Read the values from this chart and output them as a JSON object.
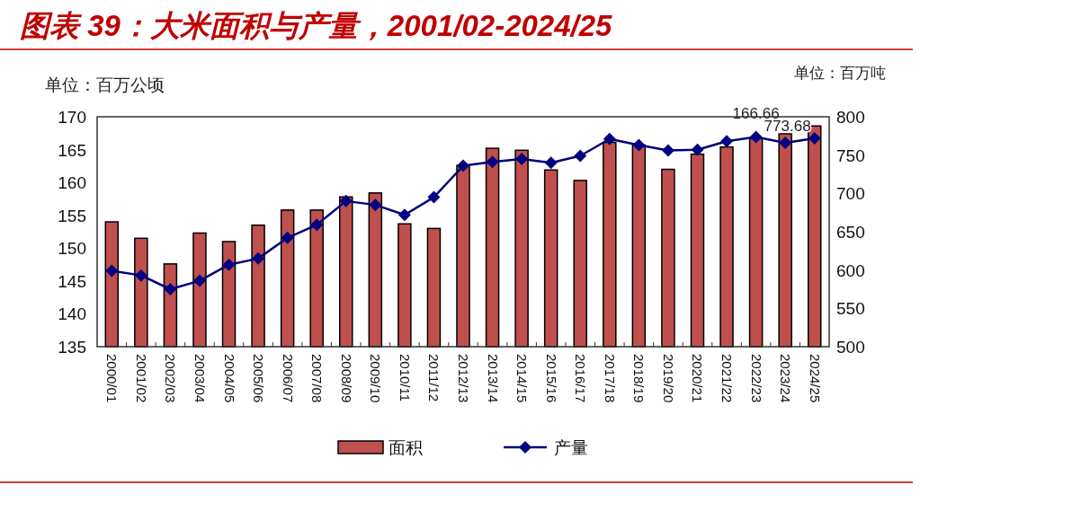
{
  "chart_data": {
    "type": "bar",
    "title": "图表 39：大米面积与产量，2001/02-2024/25",
    "ylabel": "单位：百万公顷",
    "y2label": "单位：百万吨",
    "categories": [
      "2000/01",
      "2001/02",
      "2002/03",
      "2003/04",
      "2004/05",
      "2005/06",
      "2006/07",
      "2007/08",
      "2008/09",
      "2009/10",
      "2010/11",
      "2011/12",
      "2012/13",
      "2013/14",
      "2014/15",
      "2015/16",
      "2016/17",
      "2017/18",
      "2018/19",
      "2019/20",
      "2020/21",
      "2021/22",
      "2022/23",
      "2023/24",
      "2024/25"
    ],
    "series": [
      {
        "name": "面积",
        "color": "#c0504d",
        "values": [
          154.0,
          151.5,
          147.6,
          152.3,
          151.0,
          153.5,
          155.8,
          155.8,
          157.8,
          158.4,
          153.7,
          153.0,
          162.6,
          165.2,
          164.9,
          161.9,
          160.3,
          166.1,
          165.7,
          162.0,
          164.3,
          165.4,
          166.66,
          167.4,
          168.6
        ],
        "value_labels": [
          null,
          null,
          null,
          null,
          null,
          null,
          null,
          null,
          null,
          null,
          null,
          null,
          null,
          null,
          null,
          null,
          null,
          null,
          null,
          null,
          null,
          null,
          "166.66",
          null,
          null
        ]
      },
      {
        "name": "产量",
        "type": "line",
        "axis": "y2",
        "color": "#000080",
        "marker": "diamond",
        "values": [
          599,
          593,
          575,
          586,
          607,
          615,
          642,
          659,
          690,
          685,
          672,
          695,
          736,
          741,
          745,
          740,
          749,
          771,
          763,
          756,
          757,
          768,
          773.68,
          766,
          772
        ],
        "value_labels": [
          null,
          null,
          null,
          null,
          null,
          null,
          null,
          null,
          null,
          null,
          null,
          null,
          null,
          null,
          null,
          null,
          null,
          null,
          null,
          null,
          null,
          null,
          "773.68",
          null,
          null
        ]
      }
    ],
    "ylim": [
      135,
      170
    ],
    "yticks": [
      135,
      140,
      145,
      150,
      155,
      160,
      165,
      170
    ],
    "y2lim": [
      500,
      800
    ],
    "y2ticks": [
      500,
      550,
      600,
      650,
      700,
      750,
      800
    ],
    "legend": "bottom"
  }
}
